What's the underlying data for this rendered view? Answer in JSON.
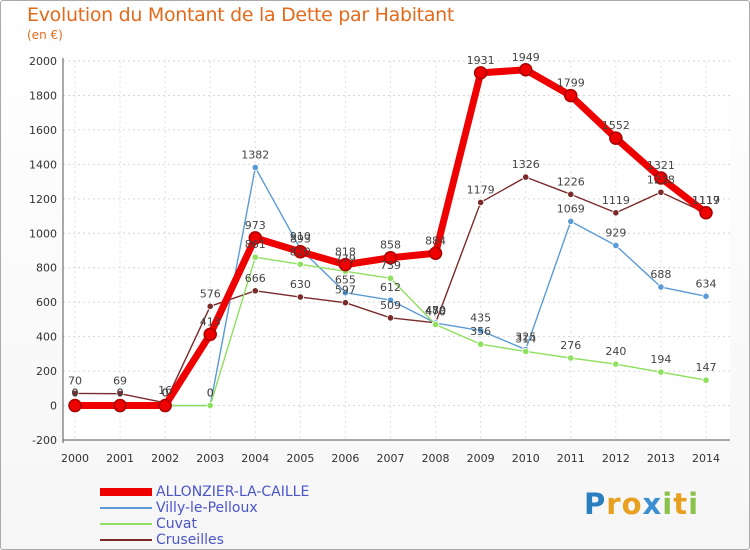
{
  "chart_data": {
    "type": "line",
    "title": "Evolution du Montant de la Dette par Habitant",
    "subtitle": "(en €)",
    "categories": [
      "2000",
      "2001",
      "2002",
      "2003",
      "2004",
      "2005",
      "2006",
      "2007",
      "2008",
      "2009",
      "2010",
      "2011",
      "2012",
      "2013",
      "2014"
    ],
    "ylim": [
      -200,
      2000
    ],
    "yticks": [
      -200,
      0,
      200,
      400,
      600,
      800,
      1000,
      1200,
      1400,
      1600,
      1800,
      2000
    ],
    "grid": true,
    "legend_position": "bottom-left",
    "series": [
      {
        "name": "ALLONZIER-LA-CAILLE",
        "color": "#ee0000",
        "values": [
          0,
          0,
          0,
          413,
          973,
          893,
          818,
          858,
          884,
          1931,
          1949,
          1799,
          1552,
          1321,
          1119
        ]
      },
      {
        "name": "Villy-le-Pelloux",
        "color": "#5a9bd5",
        "values": [
          0,
          0,
          0,
          0,
          1382,
          910,
          655,
          612,
          479,
          435,
          325,
          1069,
          929,
          688,
          634
        ]
      },
      {
        "name": "Cuvat",
        "color": "#90e060",
        "values": [
          0,
          0,
          0,
          0,
          861,
          820,
          779,
          739,
          470,
          356,
          314,
          276,
          240,
          194,
          147
        ]
      },
      {
        "name": "Cruseilles",
        "color": "#7a2a2a",
        "values": [
          70,
          69,
          16,
          576,
          666,
          630,
          597,
          509,
          480,
          1179,
          1326,
          1226,
          1119,
          1238,
          1117
        ]
      }
    ]
  },
  "brand": {
    "letters": [
      "P",
      "r",
      "o",
      "x",
      "i",
      "t",
      "i"
    ]
  }
}
